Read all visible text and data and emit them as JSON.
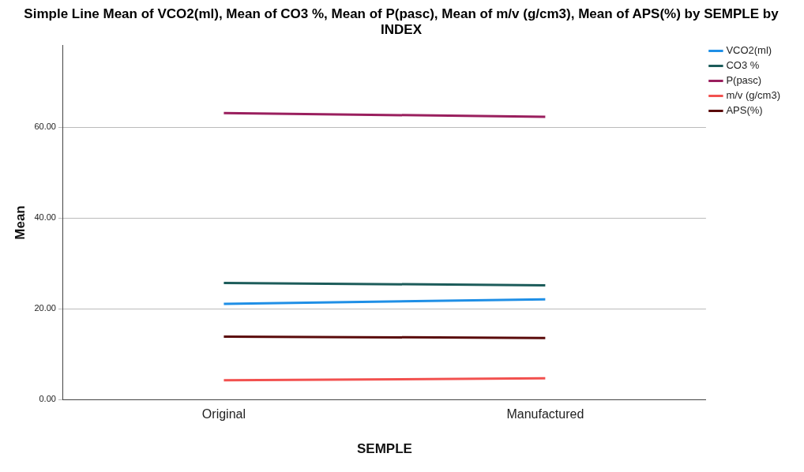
{
  "chart_data": {
    "type": "line",
    "title": "Simple Line Mean of VCO2(ml), Mean of CO3 %, Mean of P(pasc), Mean of m/v (g/cm3), Mean of APS(%) by SEMPLE by INDEX",
    "xlabel": "SEMPLE",
    "ylabel": "Mean",
    "categories": [
      "Original",
      "Manufactured"
    ],
    "series": [
      {
        "name": "VCO2(ml)",
        "color": "#1f8fe6",
        "values": [
          21.1,
          22.1
        ]
      },
      {
        "name": "CO3 %",
        "color": "#1c5c5a",
        "values": [
          25.7,
          25.2
        ]
      },
      {
        "name": "P(pasc)",
        "color": "#9a1f5e",
        "values": [
          63.1,
          62.3
        ]
      },
      {
        "name": "m/v (g/cm3)",
        "color": "#f2514f",
        "values": [
          4.3,
          4.7
        ]
      },
      {
        "name": "APS(%)",
        "color": "#5a0a0a",
        "values": [
          13.9,
          13.6
        ]
      }
    ],
    "ylim": [
      0,
      78
    ],
    "yticks": [
      {
        "value": 0,
        "label": "0.00"
      },
      {
        "value": 20,
        "label": "20.00"
      },
      {
        "value": 40,
        "label": "40.00"
      },
      {
        "value": 60,
        "label": "60.00"
      }
    ],
    "grid": "y",
    "legend": "top right",
    "marker": "none"
  }
}
